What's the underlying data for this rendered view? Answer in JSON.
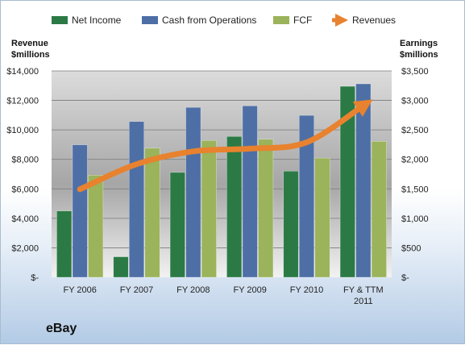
{
  "company": "eBay",
  "chart_data": {
    "type": "bar",
    "categories": [
      "FY 2006",
      "FY 2007",
      "FY 2008",
      "FY 2009",
      "FY 2010",
      [
        "FY & TTM",
        "2011"
      ]
    ],
    "series": [
      {
        "name": "Net Income",
        "axis": "right",
        "color": "#2b7a45",
        "values": [
          1125,
          348,
          1779,
          2389,
          1801,
          3239
        ]
      },
      {
        "name": "Cash from Operations",
        "axis": "right",
        "color": "#4e6fa6",
        "values": [
          2247,
          2642,
          2882,
          2908,
          2746,
          3281
        ]
      },
      {
        "name": "FCF",
        "axis": "right",
        "color": "#9bb35a",
        "values": [
          1732,
          2190,
          2321,
          2341,
          2022,
          2306
        ]
      },
      {
        "name": "Revenues",
        "axis": "left",
        "type": "line",
        "color": "#e8822e",
        "values": [
          5970,
          7672,
          8541,
          8727,
          9156,
          11652
        ]
      }
    ],
    "ylabel_left": [
      "Revenue",
      "$millions"
    ],
    "ylabel_right": [
      "Earnings",
      "$millions"
    ],
    "ylim_left": [
      0,
      14000
    ],
    "ylim_right": [
      0,
      3500
    ],
    "yticks_left": [
      "$-",
      "$2,000",
      "$4,000",
      "$6,000",
      "$8,000",
      "$10,000",
      "$12,000",
      "$14,000"
    ],
    "yticks_right": [
      "$-",
      "$500",
      "$1,000",
      "$1,500",
      "$2,000",
      "$2,500",
      "$3,000",
      "$3,500"
    ],
    "legend_position": "top",
    "grid": true
  }
}
